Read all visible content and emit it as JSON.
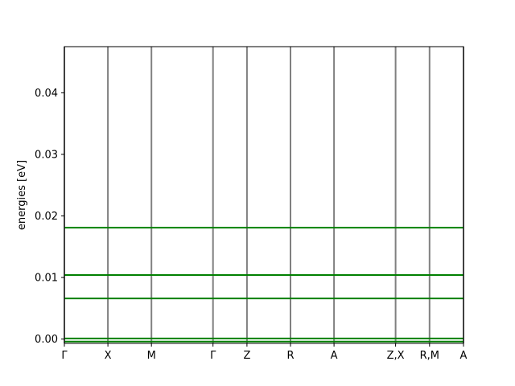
{
  "chart_data": {
    "type": "line",
    "title": "",
    "xlabel": "",
    "ylabel": "energies [eV]",
    "ylim": [
      -0.0007,
      0.0475
    ],
    "yticks": [
      0.0,
      0.01,
      0.02,
      0.03,
      0.04
    ],
    "ytick_labels": [
      "0.00",
      "0.01",
      "0.02",
      "0.03",
      "0.04"
    ],
    "high_symmetry_points": [
      {
        "label": "Γ",
        "x": 0.0
      },
      {
        "label": "X",
        "x": 0.5
      },
      {
        "label": "M",
        "x": 1.0
      },
      {
        "label": "Γ",
        "x": 1.707
      },
      {
        "label": "Z",
        "x": 2.097
      },
      {
        "label": "R",
        "x": 2.597
      },
      {
        "label": "A",
        "x": 3.097
      },
      {
        "label": "Z,X",
        "x": 3.804
      },
      {
        "label": "R,M",
        "x": 4.194
      },
      {
        "label": "A",
        "x": 4.584
      }
    ],
    "bands": [
      {
        "energy": -0.0004
      },
      {
        "energy": 0.0001
      },
      {
        "energy": 0.0066
      },
      {
        "energy": 0.0104
      },
      {
        "energy": 0.0181
      }
    ],
    "grid": false,
    "colors": {
      "band": "#008000",
      "vline": "#808080",
      "axes": "#000000"
    }
  }
}
